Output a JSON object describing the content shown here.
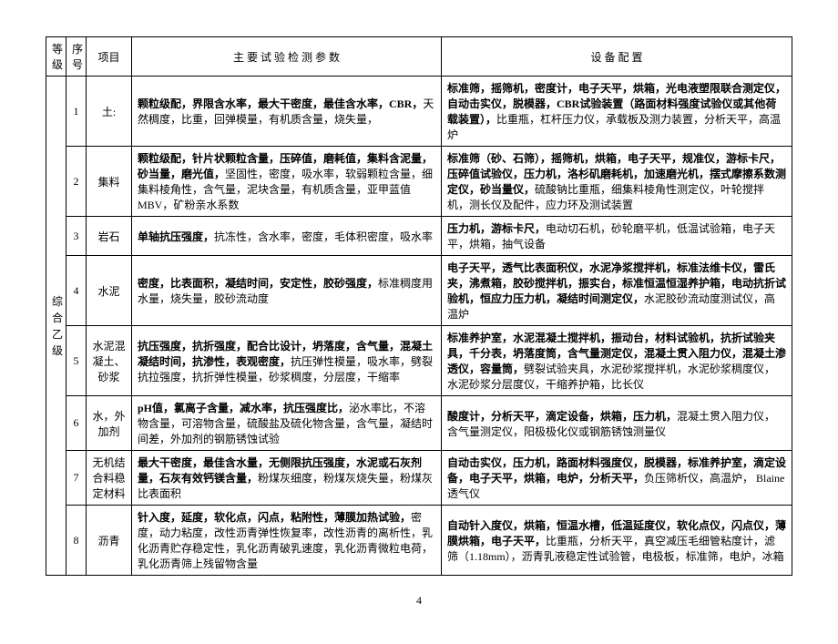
{
  "headers": {
    "level": "等级",
    "seq": "序号",
    "project": "项目",
    "params": "主 要 试 验 检 测 参 数",
    "equipment": "设 备 配 置"
  },
  "level_label": "综合乙级",
  "rows": [
    {
      "seq": "1",
      "project": "土:",
      "params_bold": "颗粒级配，界限含水率，最大干密度，最佳含水率，CBR，",
      "params_rest": "天然稠度，比重，回弹模量，有机质含量，烧失量，",
      "equip_bold": "标准筛，摇筛机，密度计，电子天平，烘箱，光电液塑限联合测定仪，自动击实仪，脱模器，CBR试验装置（路面材料强度试验仪或其他荷载装置），",
      "equip_rest": "比重瓶，杠杆压力仪，承载板及测力装置，分析天平，高温炉"
    },
    {
      "seq": "2",
      "project": "集料",
      "params_bold": "颗粒级配，针片状颗粒含量，压碎值，磨耗值，集料含泥量，砂当量，磨光值，",
      "params_rest": "坚固性，密度，吸水率，软弱颗粒含量，细集料棱角性，含气量，泥块含量，有机质含量，亚甲蓝值 MBV，矿粉亲水系数",
      "equip_bold": "标准筛（砂、石筛），摇筛机，烘箱，电子天平，规准仪，游标卡尺，压碎值试验仪，压力机，洛杉矶磨耗机，加速磨光机，摆式摩擦系数测定仪，砂当量仪，",
      "equip_rest": "硫酸钠比重瓶，细集料棱角性测定仪，叶轮搅拌机，测长仪及配件，应力环及测试装置"
    },
    {
      "seq": "3",
      "project": "岩石",
      "params_bold": "单轴抗压强度，",
      "params_rest": "抗冻性，含水率，密度，毛体积密度，吸水率",
      "equip_bold": "压力机，游标卡尺，",
      "equip_rest": "电动切石机，砂轮磨平机，低温试验箱，电子天平，烘箱，抽气设备"
    },
    {
      "seq": "4",
      "project": "水泥",
      "params_bold": "密度，比表面积，凝结时间，安定性，胶砂强度，",
      "params_rest": "标准稠度用水量，烧失量，胶砂流动度",
      "equip_bold": "电子天平，透气比表面积仪，水泥净浆搅拌机，标准法维卡仪，雷氏夹，沸煮箱，胶砂搅拌机，振实台，标准恒温恒湿养护箱，电动抗折试验机，恒应力压力机，凝结时间测定仪，",
      "equip_rest": "水泥胶砂流动度测试仪，高温炉"
    },
    {
      "seq": "5",
      "project": "水泥混凝土、砂浆",
      "params_bold": "抗压强度，抗折强度，配合比设计，坍落度，含气量，混凝土凝结时间，抗渗性，表观密度，",
      "params_rest": "抗压弹性模量，吸水率，劈裂抗拉强度，抗折弹性模量，砂浆稠度，分层度，干缩率",
      "equip_bold": "标准养护室，水泥混凝土搅拌机，振动台，材料试验机，抗折试验夹具，千分表，坍落度筒，含气量测定仪，混凝土贯入阻力仪，混凝土渗透仪，容量筒，",
      "equip_rest": "劈裂试验夹具，水泥砂浆搅拌机，水泥砂浆稠度仪，水泥砂浆分层度仪，干缩养护箱，比长仪"
    },
    {
      "seq": "6",
      "project": "水，外加剂",
      "params_bold": "pH值，氯离子含量，减水率，抗压强度比，",
      "params_rest": "泌水率比，不溶物含量，可溶物含量，硫酸盐及硫化物含量，含气量，凝结时间差，外加剂的钢筋锈蚀试验",
      "equip_bold": "酸度计，分析天平，滴定设备，烘箱，压力机，",
      "equip_rest": "混凝土贯入阻力仪，含气量测定仪，阳极极化仪或钢筋锈蚀测量仪"
    },
    {
      "seq": "7",
      "project": "无机结合料稳定材料",
      "params_bold": "最大干密度，最佳含水量，无侧限抗压强度，水泥或石灰剂量，石灰有效钙镁含量，",
      "params_rest": "粉煤灰细度，粉煤灰烧失量，粉煤灰比表面积",
      "equip_bold": "自动击实仪，压力机，路面材料强度仪，脱模器，标准养护室，滴定设备，电子天平，烘箱，电炉，分析天平，",
      "equip_rest": "负压筛析仪，高温炉， Blaine透气仪"
    },
    {
      "seq": "8",
      "project": "沥青",
      "params_bold": "针入度，延度，软化点，闪点，粘附性，薄膜加热试验，",
      "params_rest": "密度，动力粘度，改性沥青弹性恢复率，改性沥青的离析性，乳化沥青贮存稳定性，乳化沥青破乳速度，乳化沥青微粒电荷，乳化沥青筛上残留物含量",
      "equip_bold": "自动针入度仪，烘箱，恒温水槽，低温延度仪，软化点仪，闪点仪，薄膜烘箱，电子天平，",
      "equip_rest": "比重瓶，分析天平，真空减压毛细管粘度计，滤筛（1.18mm），沥青乳液稳定性试验管，电极板，标准筛，电炉，冰箱"
    }
  ],
  "page_number": "4"
}
